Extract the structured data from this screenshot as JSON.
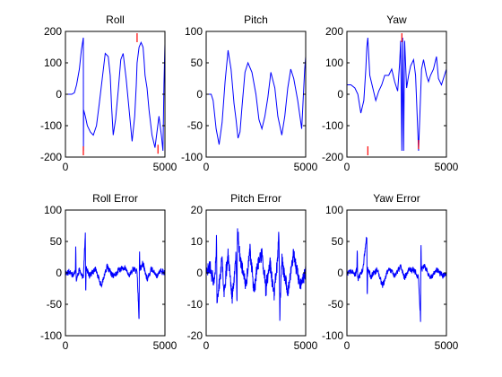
{
  "figure": {
    "background": "#ffffff",
    "axes_color": "#000000"
  },
  "chart_data": [
    {
      "type": "line",
      "title": "Roll",
      "xlim": [
        0,
        5000
      ],
      "ylim": [
        -200,
        200
      ],
      "xticks": [
        0,
        5000
      ],
      "yticks": [
        200,
        100,
        0,
        -100,
        -200
      ],
      "grid": false,
      "series": [
        {
          "color": "#0000ff",
          "x": [
            0,
            200,
            320,
            450,
            560,
            700,
            800,
            900,
            905,
            915,
            1000,
            1100,
            1250,
            1400,
            1560,
            1700,
            1850,
            2000,
            2150,
            2250,
            2320,
            2400,
            2520,
            2650,
            2780,
            2900,
            3050,
            3200,
            3350,
            3480,
            3560,
            3600,
            3700,
            3800,
            3900,
            3950,
            4000,
            4100,
            4200,
            4350,
            4500,
            4600,
            4700,
            4820,
            4900,
            4950,
            5000
          ],
          "y": [
            0,
            0,
            0,
            5,
            30,
            80,
            140,
            180,
            -180,
            -50,
            -70,
            -100,
            -120,
            -130,
            -100,
            -30,
            50,
            130,
            120,
            60,
            -40,
            -130,
            -80,
            10,
            110,
            130,
            50,
            -50,
            -150,
            -70,
            30,
            100,
            150,
            165,
            150,
            110,
            60,
            20,
            -50,
            -130,
            -170,
            -120,
            -70,
            -130,
            -180,
            30,
            160
          ]
        }
      ],
      "markers": [
        {
          "x": 900,
          "y": -180,
          "color": "#ff0000"
        },
        {
          "x": 3600,
          "y": 180,
          "color": "#ff0000"
        },
        {
          "x": 4650,
          "y": -175,
          "color": "#ff0000"
        }
      ]
    },
    {
      "type": "line",
      "title": "Pitch",
      "xlim": [
        0,
        5000
      ],
      "ylim": [
        -100,
        100
      ],
      "xticks": [
        0,
        5000
      ],
      "yticks": [
        100,
        50,
        0,
        -50,
        -100
      ],
      "grid": false,
      "series": [
        {
          "color": "#0000ff",
          "x": [
            0,
            250,
            350,
            500,
            650,
            800,
            950,
            1100,
            1250,
            1400,
            1500,
            1600,
            1700,
            1800,
            1950,
            2100,
            2300,
            2500,
            2650,
            2800,
            2950,
            3100,
            3250,
            3450,
            3600,
            3800,
            3950,
            4100,
            4250,
            4400,
            4600,
            4800,
            4950,
            5000
          ],
          "y": [
            0,
            0,
            -10,
            -55,
            -80,
            -45,
            20,
            70,
            40,
            -15,
            -40,
            -70,
            -60,
            -20,
            35,
            50,
            35,
            0,
            -40,
            -55,
            -35,
            -5,
            35,
            10,
            -35,
            -65,
            -35,
            10,
            40,
            25,
            -10,
            -55,
            40,
            60
          ]
        }
      ],
      "markers": []
    },
    {
      "type": "line",
      "title": "Yaw",
      "xlim": [
        0,
        5000
      ],
      "ylim": [
        -200,
        200
      ],
      "xticks": [
        0,
        5000
      ],
      "yticks": [
        200,
        100,
        0,
        -100,
        -200
      ],
      "grid": false,
      "series": [
        {
          "color": "#0000ff",
          "x": [
            0,
            200,
            400,
            550,
            700,
            850,
            950,
            1000,
            1050,
            1150,
            1300,
            1450,
            1600,
            1750,
            1900,
            2100,
            2250,
            2400,
            2550,
            2650,
            2700,
            2760,
            2800,
            2850,
            2900,
            3000,
            3100,
            3200,
            3350,
            3450,
            3600,
            3750,
            3850,
            4000,
            4100,
            4200,
            4350,
            4500,
            4600,
            4750,
            4900,
            5000
          ],
          "y": [
            30,
            30,
            20,
            0,
            -60,
            -20,
            80,
            150,
            180,
            60,
            20,
            -20,
            10,
            30,
            60,
            60,
            80,
            40,
            10,
            100,
            170,
            -180,
            180,
            -180,
            170,
            20,
            60,
            90,
            110,
            60,
            -180,
            80,
            110,
            60,
            40,
            60,
            80,
            120,
            50,
            30,
            60,
            80
          ]
        }
      ],
      "markers": [
        {
          "x": 1050,
          "y": -180,
          "color": "#ff0000"
        },
        {
          "x": 2760,
          "y": 180,
          "color": "#ff0000"
        },
        {
          "x": 3600,
          "y": -160,
          "color": "#ff0000"
        }
      ]
    },
    {
      "type": "line",
      "title": "Roll Error",
      "xlim": [
        0,
        5000
      ],
      "ylim": [
        -100,
        100
      ],
      "xticks": [
        0,
        5000
      ],
      "yticks": [
        100,
        50,
        0,
        -50,
        -100
      ],
      "grid": false,
      "series": [
        {
          "color": "#0000ff",
          "x": [
            0,
            200,
            400,
            500,
            520,
            540,
            700,
            900,
            1000,
            1020,
            1040,
            1200,
            1500,
            1800,
            2100,
            2400,
            2700,
            3000,
            3200,
            3400,
            3600,
            3700,
            3720,
            3740,
            3900,
            4100,
            4300,
            4600,
            4800,
            5000
          ],
          "y": [
            0,
            2,
            -3,
            4,
            45,
            -12,
            5,
            -8,
            62,
            -45,
            10,
            -5,
            6,
            -20,
            10,
            -6,
            5,
            8,
            -5,
            6,
            3,
            -75,
            40,
            5,
            15,
            -10,
            6,
            -5,
            4,
            0
          ]
        }
      ],
      "noise": {
        "seed": 11,
        "amp": 6
      },
      "markers": []
    },
    {
      "type": "line",
      "title": "Pitch Error",
      "xlim": [
        0,
        5000
      ],
      "ylim": [
        -20,
        20
      ],
      "xticks": [
        0,
        5000
      ],
      "yticks": [
        20,
        10,
        0,
        -10,
        -20
      ],
      "grid": false,
      "series": [
        {
          "color": "#0000ff",
          "x": [
            0,
            200,
            400,
            500,
            520,
            540,
            800,
            900,
            1100,
            1300,
            1500,
            1550,
            1570,
            1700,
            2000,
            2200,
            2400,
            2600,
            2800,
            3000,
            3200,
            3400,
            3600,
            3650,
            3700,
            3800,
            4100,
            4400,
            4700,
            5000
          ],
          "y": [
            0,
            2,
            -4,
            5,
            13,
            -10,
            4,
            -6,
            6,
            -8,
            5,
            -10,
            14,
            5,
            -4,
            8,
            -6,
            3,
            6,
            -5,
            4,
            -7,
            5,
            14,
            -13,
            4,
            -6,
            6,
            -4,
            0
          ]
        }
      ],
      "noise": {
        "seed": 23,
        "amp": 3
      },
      "markers": []
    },
    {
      "type": "line",
      "title": "Yaw Error",
      "xlim": [
        0,
        5000
      ],
      "ylim": [
        -100,
        100
      ],
      "xticks": [
        0,
        5000
      ],
      "yticks": [
        100,
        50,
        0,
        -50,
        -100
      ],
      "grid": false,
      "series": [
        {
          "color": "#0000ff",
          "x": [
            0,
            200,
            400,
            500,
            520,
            540,
            800,
            1000,
            1020,
            1040,
            1200,
            1500,
            1800,
            2100,
            2400,
            2700,
            2900,
            3100,
            3400,
            3600,
            3700,
            3720,
            3740,
            3900,
            4200,
            4500,
            4800,
            5000
          ],
          "y": [
            0,
            2,
            -3,
            4,
            45,
            -10,
            5,
            60,
            -50,
            8,
            -6,
            5,
            -20,
            8,
            -5,
            10,
            -8,
            6,
            4,
            -10,
            -75,
            55,
            5,
            10,
            -8,
            6,
            -4,
            0
          ]
        }
      ],
      "noise": {
        "seed": 37,
        "amp": 6
      },
      "markers": []
    }
  ]
}
